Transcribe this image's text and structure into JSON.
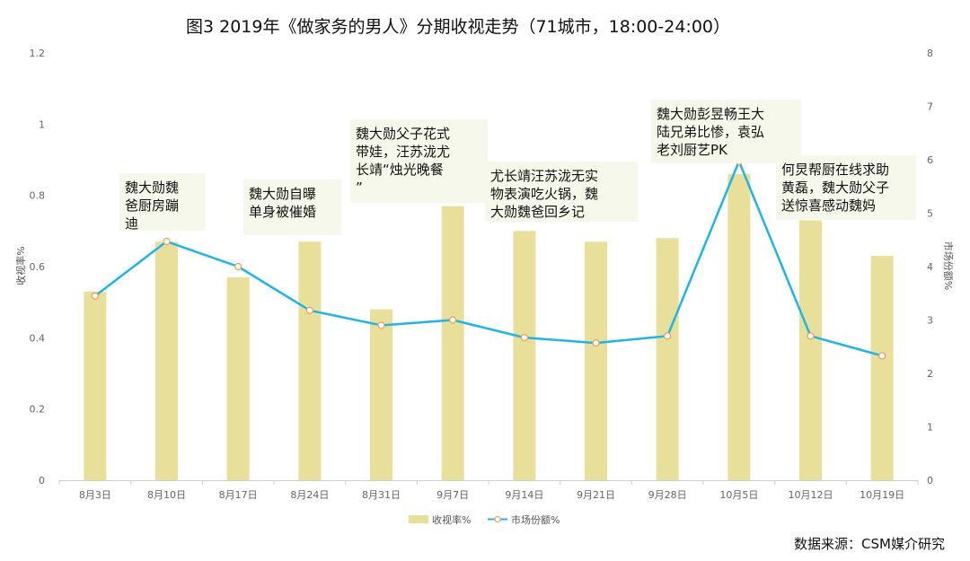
{
  "chart_data": {
    "type": "bar",
    "title": "图3 2019年《做家务的男人》分期收视走势（71城市，18:00-24:00）",
    "categories": [
      "8月3日",
      "8月10日",
      "8月17日",
      "8月24日",
      "8月31日",
      "9月7日",
      "9月14日",
      "9月21日",
      "9月28日",
      "10月5日",
      "10月12日",
      "10月19日"
    ],
    "series": [
      {
        "name": "收视率%",
        "type": "bar",
        "axis": "left",
        "color": "#e8e09a",
        "values": [
          0.53,
          0.67,
          0.57,
          0.67,
          0.48,
          0.77,
          0.7,
          0.67,
          0.68,
          0.86,
          0.73,
          0.63
        ]
      },
      {
        "name": "市场份额%",
        "type": "line",
        "axis": "right",
        "color": "#1fb5e8",
        "values": [
          3.45,
          4.47,
          4.0,
          3.18,
          2.9,
          3.0,
          2.67,
          2.57,
          2.7,
          5.97,
          2.7,
          2.33
        ]
      }
    ],
    "y_left": {
      "label": "收视率%",
      "min": 0,
      "max": 1.2,
      "ticks": [
        "0",
        "0.2",
        "0.4",
        "0.6",
        "0.8",
        "1",
        "1.2"
      ]
    },
    "y_right": {
      "label": "市场份额%",
      "min": 0,
      "max": 8,
      "ticks": [
        "0",
        "1",
        "2",
        "3",
        "4",
        "5",
        "6",
        "7",
        "8"
      ]
    },
    "grid": false,
    "legend": "bottom-center",
    "annotations": [
      {
        "index": 1,
        "lines": [
          "魏大勋魏",
          "爸厨房蹦",
          "迪"
        ]
      },
      {
        "index": 3,
        "lines": [
          "魏大勋自曝",
          "单身被催婚"
        ]
      },
      {
        "index": 5,
        "lines": [
          "魏大勋父子花式",
          "带娃，汪苏泷尤",
          "长靖“烛光晚餐",
          "”"
        ]
      },
      {
        "index": 6,
        "lines": [
          "尤长靖汪苏泷无实",
          "物表演吃火锅，魏",
          "大勋魏爸回乡记"
        ]
      },
      {
        "index": 9,
        "lines": [
          "魏大勋彭昱畅王大",
          "陆兄弟比惨，袁弘",
          "老刘厨艺PK"
        ]
      },
      {
        "index": 10,
        "lines": [
          "何炅帮厨在线求助",
          "黄磊，魏大勋父子",
          "送惊喜感动魏妈"
        ]
      }
    ]
  },
  "source": "数据来源：CSM媒介研究"
}
